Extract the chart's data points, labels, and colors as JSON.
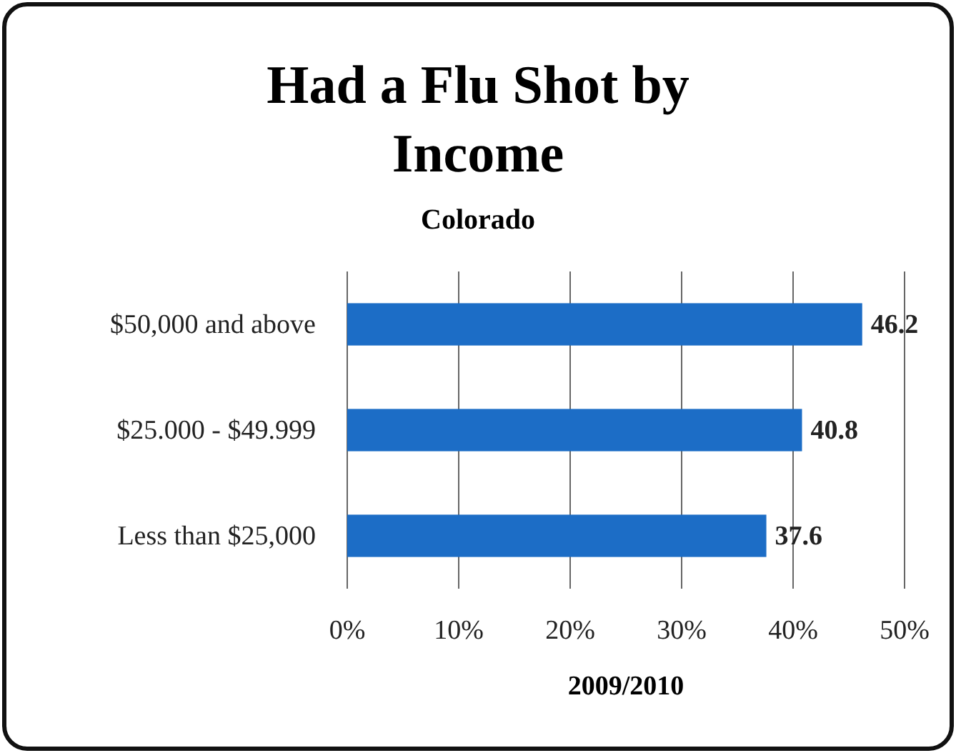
{
  "chart_data": {
    "type": "bar",
    "orientation": "horizontal",
    "title": "Had a Flu Shot by Income",
    "subtitle": "Colorado",
    "xlabel": "2009/2010",
    "categories": [
      "$50,000 and above",
      "$25.000 - $49.999",
      "Less than $25,000"
    ],
    "values": [
      46.2,
      40.8,
      37.6
    ],
    "color": "#1c6dc6",
    "data_labels": true,
    "grid": "x",
    "xlim": [
      0,
      50
    ],
    "xticks": [
      {
        "value": 0,
        "label": "0%"
      },
      {
        "value": 10,
        "label": "10%"
      },
      {
        "value": 20,
        "label": "20%"
      },
      {
        "value": 30,
        "label": "30%"
      },
      {
        "value": 40,
        "label": "40%"
      },
      {
        "value": 50,
        "label": "50%"
      }
    ]
  }
}
